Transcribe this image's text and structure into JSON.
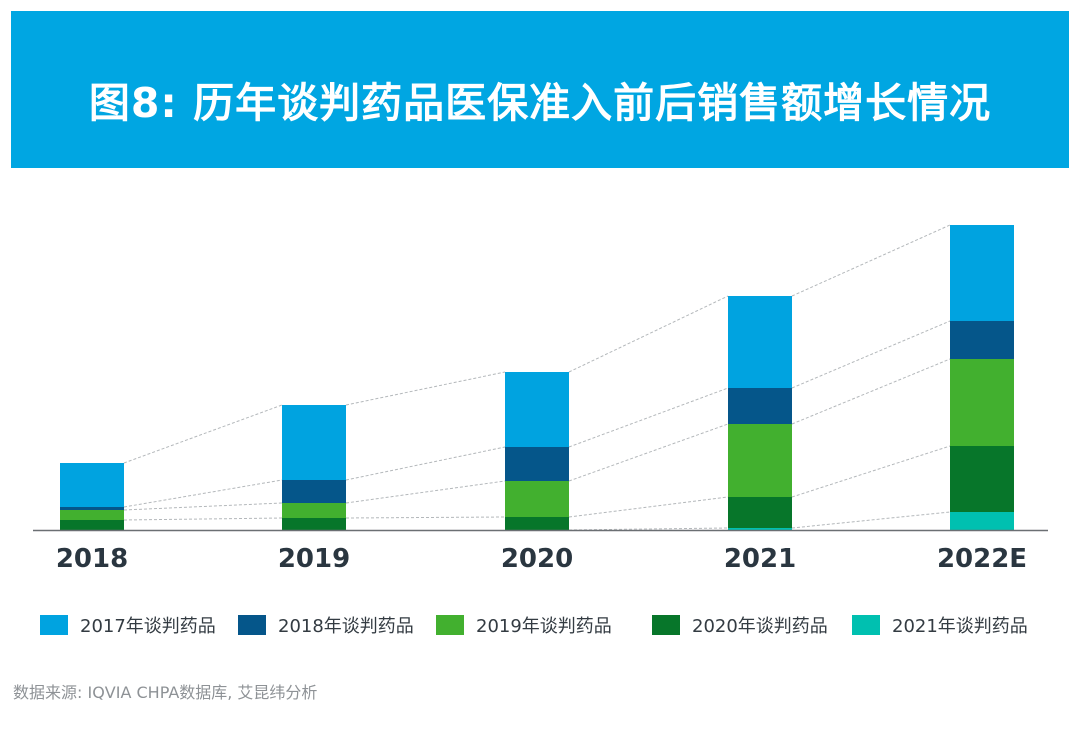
{
  "title": "图8: 历年谈判药品医保准入前后销售额增长情况",
  "colors": {
    "banner": "#00a6e2",
    "series": [
      "#00a3e0",
      "#05568a",
      "#42b02f",
      "#07762a",
      "#00c0b0"
    ]
  },
  "chart_data": {
    "type": "bar",
    "stacked": true,
    "title": "历年谈判药品医保准入前后销售额增长情况",
    "xlabel": "",
    "ylabel": "",
    "value_units": "relative (no axis shown; estimated from bar heights)",
    "categories": [
      "2018",
      "2019",
      "2020",
      "2021",
      "2022E"
    ],
    "series": [
      {
        "name": "2021年谈判药品",
        "values": [
          0,
          0,
          0,
          2,
          18
        ]
      },
      {
        "name": "2020年谈判药品",
        "values": [
          10,
          12,
          13,
          31,
          66
        ]
      },
      {
        "name": "2019年谈判药品",
        "values": [
          10,
          15,
          36,
          73,
          87
        ]
      },
      {
        "name": "2018年谈判药品",
        "values": [
          3,
          23,
          34,
          36,
          38
        ]
      },
      {
        "name": "2017年谈判药品",
        "values": [
          44,
          75,
          75,
          92,
          96
        ]
      }
    ],
    "ylim": [
      0,
      305
    ],
    "grid": false,
    "connector_lines": "dashed grey lines linking segment tops between adjacent bars",
    "legend_position": "bottom"
  },
  "legend": [
    {
      "label": "2017年谈判药品",
      "color": "#00a3e0"
    },
    {
      "label": "2018年谈判药品",
      "color": "#05568a"
    },
    {
      "label": "2019年谈判药品",
      "color": "#42b02f"
    },
    {
      "label": "2020年谈判药品",
      "color": "#07762a"
    },
    {
      "label": "2021年谈判药品",
      "color": "#00c0b0"
    }
  ],
  "source": "数据来源: IQVIA CHPA数据库, 艾昆纬分析"
}
